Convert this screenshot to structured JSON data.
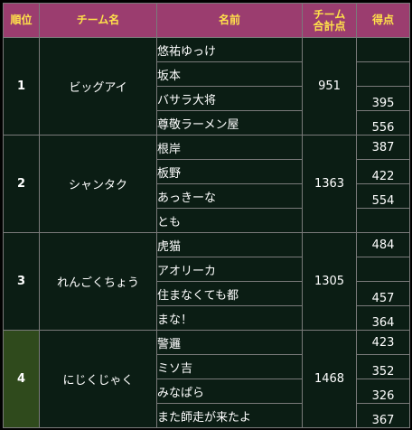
{
  "headers": {
    "rank": "順位",
    "team": "チーム名",
    "member": "名前",
    "total_line1": "チーム",
    "total_line2": "合計点",
    "score": "得点"
  },
  "teams": [
    {
      "rank": "1",
      "name": "ビッグアイ",
      "total": "951",
      "members": [
        {
          "name": "悠祐ゆっけ",
          "score": ""
        },
        {
          "name": "坂本",
          "score": ""
        },
        {
          "name": "バサラ大将",
          "score": "395"
        },
        {
          "name": "尊敬ラーメン屋",
          "score": "556"
        }
      ]
    },
    {
      "rank": "2",
      "name": "シャンタク",
      "total": "1363",
      "members": [
        {
          "name": "根岸",
          "score": "387"
        },
        {
          "name": "板野",
          "score": "422"
        },
        {
          "name": "あっきーな",
          "score": "554"
        },
        {
          "name": "とも",
          "score": ""
        }
      ]
    },
    {
      "rank": "3",
      "name": "れんごくちょう",
      "total": "1305",
      "members": [
        {
          "name": "虎猫",
          "score": "484"
        },
        {
          "name": "アオリーカ",
          "score": ""
        },
        {
          "name": "住まなくても都",
          "score": "457"
        },
        {
          "name": "まな！",
          "score": "364"
        }
      ]
    },
    {
      "rank": "4",
      "name": "にじくじゃく",
      "total": "1468",
      "members": [
        {
          "name": "警邏",
          "score": "423"
        },
        {
          "name": "ミソ吉",
          "score": "352"
        },
        {
          "name": "みなぱら",
          "score": "326"
        },
        {
          "name": "また師走が来たよ",
          "score": "367"
        }
      ]
    }
  ],
  "colors": {
    "header_bg": "#9b3d6f",
    "header_text": "#ffe14a",
    "body_bg": "#0b1d14",
    "rank_text": "#ffe14a",
    "highlight_rank_bg": "#2f4a1c",
    "border": "#7a7a7a"
  }
}
